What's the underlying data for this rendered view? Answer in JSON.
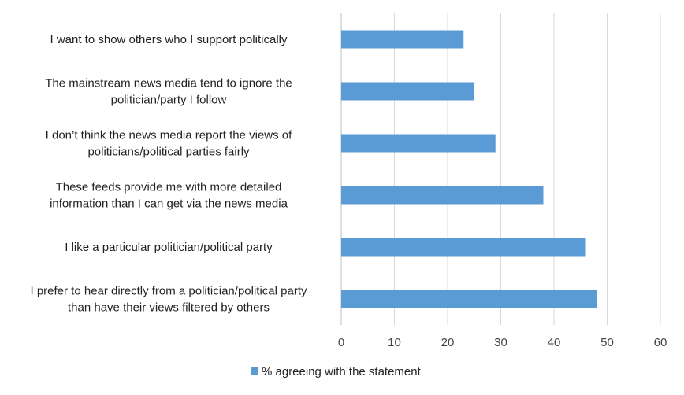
{
  "chart_data": {
    "type": "bar",
    "orientation": "horizontal",
    "categories": [
      "I want to show others who I support politically",
      "The mainstream news media tend to ignore the politician/party I follow",
      "I don’t think the news media report the views of politicians/political parties fairly",
      "These feeds provide me with more detailed information than I can get via the news media",
      "I like a particular politician/political party",
      "I prefer to hear directly from a politician/political party than have their views filtered by others"
    ],
    "category_lines": [
      [
        "I want to show others who I support politically"
      ],
      [
        "The mainstream news media tend to ignore the",
        "politician/party I follow"
      ],
      [
        "I don’t think the news media report the views of",
        "politicians/political parties fairly"
      ],
      [
        "These feeds provide me with more detailed",
        "information than I can get via the news media"
      ],
      [
        "I like a particular politician/political party"
      ],
      [
        "I prefer to hear directly from a politician/political party",
        "than have their views filtered by others"
      ]
    ],
    "series": [
      {
        "name": "% agreeing with the statement",
        "values": [
          23,
          25,
          29,
          38,
          46,
          48
        ]
      }
    ],
    "xlim": [
      0,
      60
    ],
    "xticks": [
      0,
      10,
      20,
      30,
      40,
      50,
      60
    ],
    "grid": "vertical",
    "legend": "bottom",
    "colors": {
      "bar": "#5b9bd5",
      "grid": "#d9d9d9",
      "axis": "#bfbfbf"
    }
  }
}
